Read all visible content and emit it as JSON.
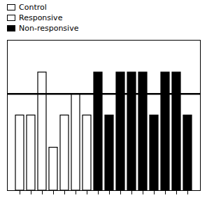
{
  "chart_data": {
    "type": "bar",
    "title": "",
    "categories": [
      null,
      null,
      null,
      null,
      null,
      null,
      null,
      null,
      null,
      null,
      null,
      null,
      null,
      null,
      null,
      null
    ],
    "values": [
      3.5,
      3.5,
      5.5,
      2.0,
      3.5,
      4.5,
      3.5,
      5.5,
      3.5,
      5.5,
      5.5,
      5.5,
      3.5,
      5.5,
      5.5,
      3.5
    ],
    "colors": [
      "white",
      "white",
      "white",
      "white",
      "white",
      "white",
      "white",
      "black",
      "black",
      "black",
      "black",
      "black",
      "black",
      "black",
      "black",
      "black"
    ],
    "hline": {
      "y": 4.5,
      "color": "black"
    },
    "ylim": [
      0,
      7
    ],
    "yticks": [],
    "tick_labels": false,
    "grid": false,
    "legend": "upper left",
    "legend_labels": [
      "Control",
      "Responsive",
      "Non-responsive"
    ],
    "legend_colors": [
      "white",
      "white",
      "black"
    ]
  }
}
